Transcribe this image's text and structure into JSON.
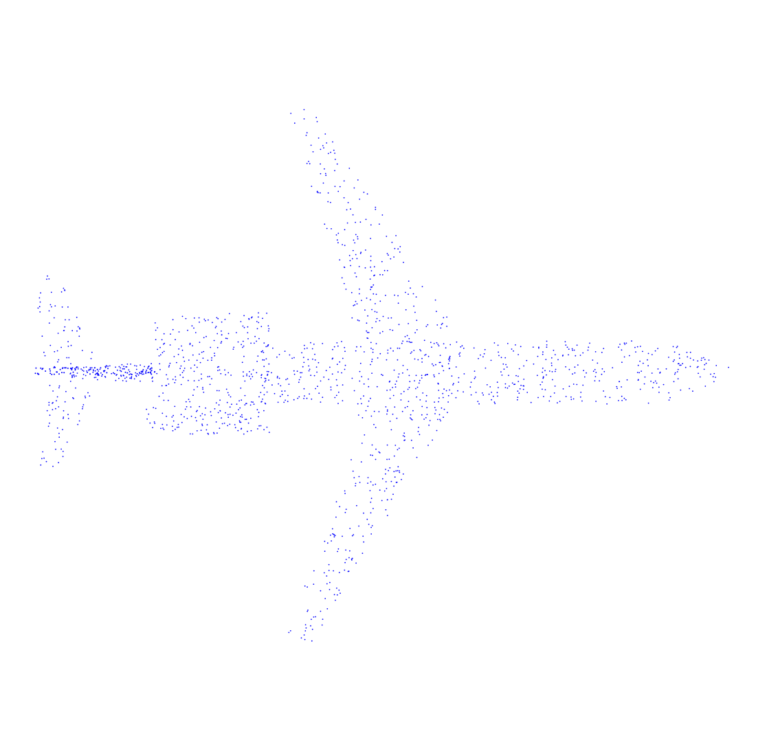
{
  "figure": {
    "subject": "airplane-point-cloud",
    "view": "top",
    "background_color": "#ffffff",
    "point_color": "#0000ff",
    "approx_point_count": 1600,
    "axes_visible": false
  }
}
